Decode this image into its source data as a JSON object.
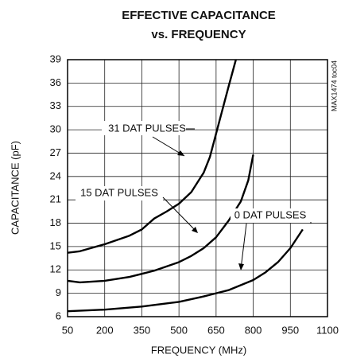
{
  "chart_data": {
    "type": "line",
    "title": "EFFECTIVE CAPACITANCE",
    "subtitle": "vs. FREQUENCY",
    "x_label": "FREQUENCY (MHz)",
    "y_label": "CAPACITANCE (pF)",
    "side_note": "MAX1474 toc04",
    "xlim": [
      50,
      1100
    ],
    "xticks": [
      50,
      200,
      350,
      500,
      650,
      800,
      950,
      1100
    ],
    "ylim": [
      6,
      39
    ],
    "yticks": [
      6,
      9,
      12,
      15,
      18,
      21,
      24,
      27,
      30,
      33,
      36,
      39
    ],
    "grid": true,
    "series": [
      {
        "name": "31 DAT PULSES",
        "color": "#000000",
        "x": [
          50,
          100,
          200,
          300,
          350,
          400,
          450,
          500,
          550,
          600,
          625,
          650,
          675,
          700,
          730
        ],
        "values": [
          14.2,
          14.4,
          15.3,
          16.4,
          17.2,
          18.6,
          19.5,
          20.5,
          22,
          24.5,
          26.5,
          29.5,
          32.5,
          35.5,
          39
        ]
      },
      {
        "name": "15 DAT PULSES",
        "color": "#000000",
        "x": [
          50,
          100,
          200,
          300,
          350,
          400,
          500,
          550,
          600,
          650,
          700,
          750,
          780,
          800
        ],
        "values": [
          10.6,
          10.4,
          10.6,
          11.1,
          11.5,
          11.9,
          13,
          13.8,
          14.8,
          16.2,
          18.3,
          20.8,
          23.5,
          26.8
        ]
      },
      {
        "name": "0 DAT PULSES",
        "color": "#000000",
        "x": [
          50,
          200,
          350,
          500,
          600,
          650,
          700,
          800,
          850,
          900,
          950,
          1000
        ],
        "values": [
          6.7,
          6.9,
          7.3,
          7.9,
          8.6,
          9,
          9.4,
          10.7,
          11.7,
          13,
          14.8,
          17.2
        ]
      }
    ]
  }
}
